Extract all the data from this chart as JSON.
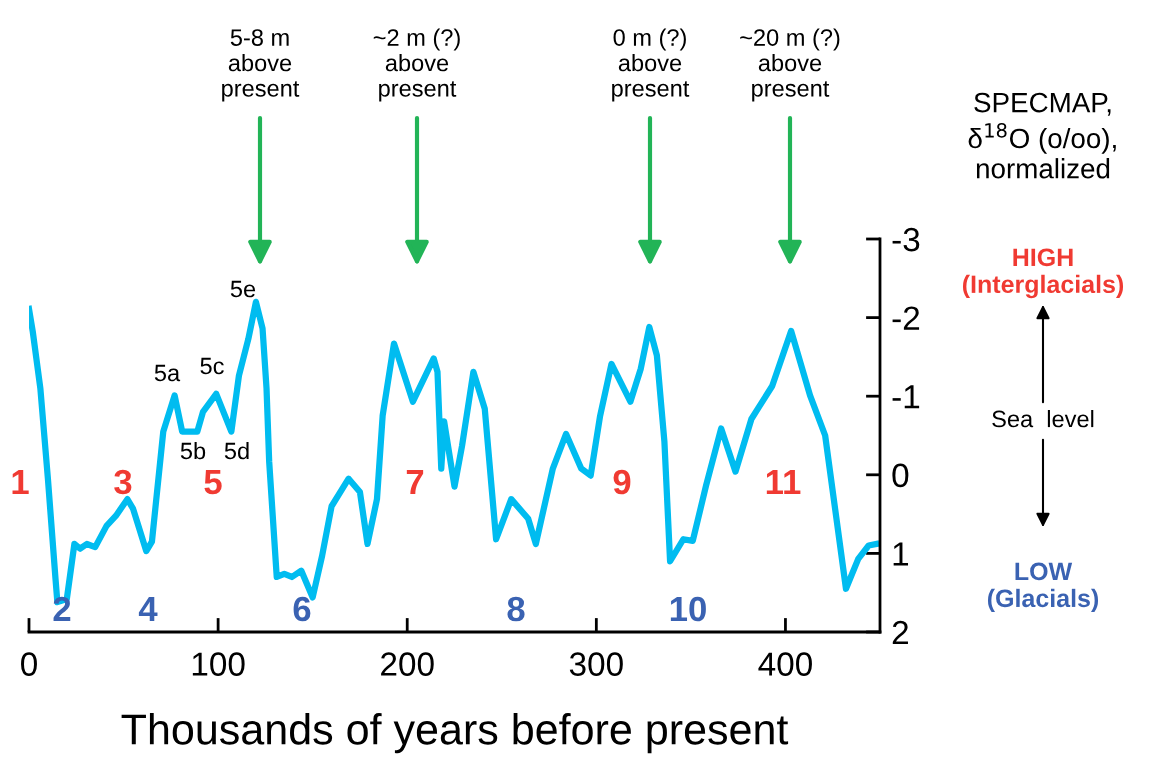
{
  "chart_data": {
    "type": "line",
    "xlabel": "Thousands of years before present",
    "ylabel": "SPECMAP,\nδ$^{18}$O (o/oo),\nnormalized",
    "x": [
      0,
      2,
      6,
      10,
      14,
      15,
      20,
      24,
      27,
      30.6,
      35,
      41,
      46,
      52,
      55,
      62,
      65,
      71,
      77,
      81,
      89,
      92,
      99,
      107,
      111,
      116,
      120,
      123.5,
      125.6,
      127,
      131,
      135,
      139,
      144,
      150,
      155,
      160,
      169,
      175,
      179,
      184,
      187,
      193,
      203,
      214,
      216,
      218,
      219.5,
      225,
      229,
      235,
      241,
      247,
      255,
      264,
      268,
      277,
      284,
      292,
      297,
      302,
      308,
      318,
      323.5,
      328,
      332,
      336,
      339,
      346,
      351,
      358,
      366,
      373.6,
      382,
      393,
      403,
      413,
      421,
      432,
      438.5,
      444,
      448
    ],
    "series": [
      {
        "color": "#00bcf0",
        "values": [
          -2.11,
          -1.82,
          -1.1,
          0.05,
          1.32,
          1.62,
          1.58,
          0.88,
          0.94,
          0.88,
          0.92,
          0.65,
          0.52,
          0.31,
          0.43,
          0.97,
          0.85,
          -0.55,
          -1.01,
          -0.55,
          -0.55,
          -0.8,
          -1.03,
          -0.55,
          -1.26,
          -1.73,
          -2.2,
          -1.86,
          -1.1,
          -0.17,
          1.3,
          1.26,
          1.3,
          1.22,
          1.56,
          1.03,
          0.4,
          0.05,
          0.22,
          0.88,
          0.31,
          -0.75,
          -1.67,
          -0.93,
          -1.48,
          -1.31,
          -0.08,
          -0.68,
          0.15,
          -0.37,
          -1.31,
          -0.84,
          0.82,
          0.31,
          0.56,
          0.88,
          -0.08,
          -0.52,
          -0.08,
          0.01,
          -0.75,
          -1.41,
          -0.93,
          -1.35,
          -1.88,
          -1.52,
          -0.42,
          1.1,
          0.82,
          0.84,
          0.14,
          -0.59,
          -0.04,
          -0.71,
          -1.13,
          -1.83,
          -1.01,
          -0.5,
          1.45,
          1.07,
          0.9,
          0.88
        ]
      }
    ],
    "xlim": [
      0,
      450
    ],
    "xticks": [
      0,
      100,
      200,
      300,
      400
    ],
    "ylim": [
      2,
      -3
    ],
    "yticks": [
      -3,
      -2,
      -1,
      0,
      1,
      2
    ],
    "grid": false,
    "legend": false,
    "marker": "none",
    "line_style": "solid",
    "annotations": [
      "5-8 m\nabove\npresent",
      "~2 m (?)\nabove\npresent",
      "0 m (?)\nabove\npresent",
      "~20 m (?)\nabove\npresent",
      "1",
      "2",
      "3",
      "4",
      "5",
      "6",
      "7",
      "8",
      "9",
      "10",
      "11",
      "5a",
      "5b",
      "5c",
      "5d",
      "5e",
      "HIGH\n(Interglacials)",
      "LOW\n(Glacials)",
      "Sea  level"
    ]
  }
}
